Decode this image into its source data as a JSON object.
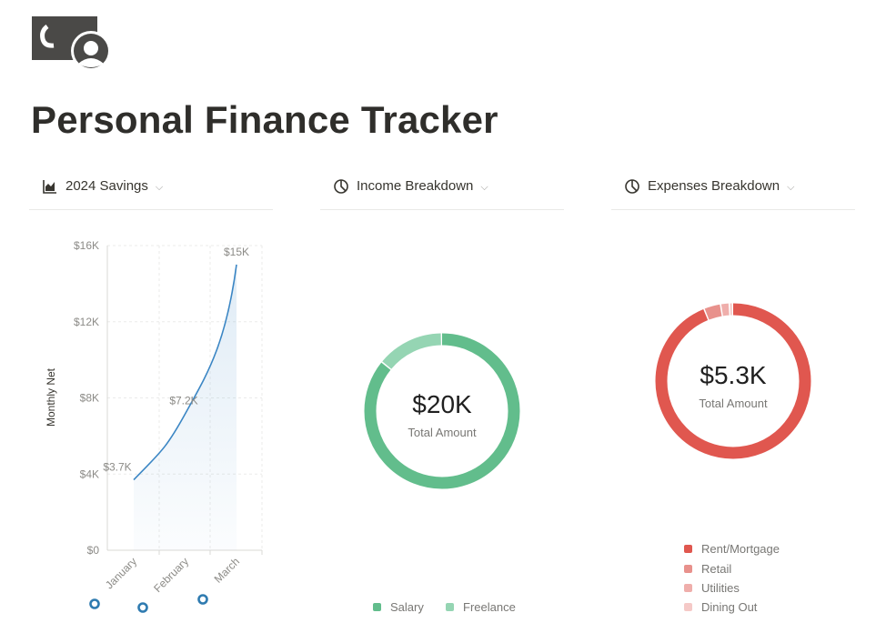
{
  "page": {
    "title": "Personal Finance Tracker"
  },
  "views": [
    {
      "label": "2024 Savings",
      "icon": "area-chart-icon"
    },
    {
      "label": "Income Breakdown",
      "icon": "pie-chart-icon"
    },
    {
      "label": "Expenses Breakdown",
      "icon": "pie-chart-icon"
    }
  ],
  "chart_data": [
    {
      "type": "area",
      "title": "",
      "xlabel": "",
      "ylabel": "Monthly Net",
      "categories": [
        "January",
        "February",
        "March"
      ],
      "values": [
        3700,
        7200,
        15000
      ],
      "data_labels": [
        "$3.7K",
        "$7.2K",
        "$15K"
      ],
      "ylim": [
        0,
        16000
      ],
      "yticks": [
        0,
        4000,
        8000,
        12000,
        16000
      ],
      "ytick_labels": [
        "$0",
        "$4K",
        "$8K",
        "$12K",
        "$16K"
      ],
      "grid": true,
      "color": "#3b86c4"
    },
    {
      "type": "pie",
      "style": "donut",
      "center_value": "$20K",
      "center_label": "Total Amount",
      "categories": [
        "Salary",
        "Freelance"
      ],
      "values": [
        86,
        14
      ],
      "colors": [
        "#62bd8c",
        "#95d5b3"
      ],
      "legend_position": "bottom"
    },
    {
      "type": "pie",
      "style": "donut",
      "center_value": "$5.3K",
      "center_label": "Total Amount",
      "categories": [
        "Rent/Mortgage",
        "Retail",
        "Utilities",
        "Dining Out"
      ],
      "values": [
        94,
        3.5,
        1.8,
        0.7
      ],
      "colors": [
        "#e0574f",
        "#e8918c",
        "#efaeab",
        "#f5c9c7"
      ],
      "legend_position": "bottom"
    }
  ]
}
